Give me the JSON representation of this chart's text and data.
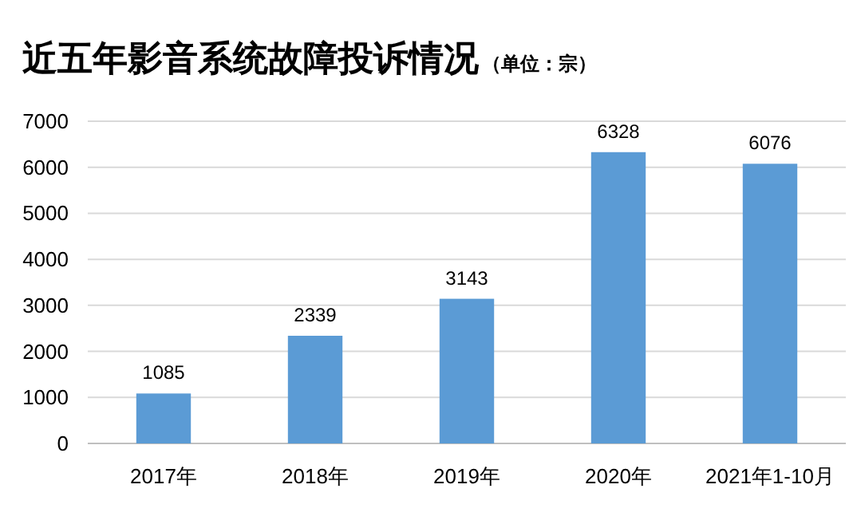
{
  "chart_data": {
    "type": "bar",
    "title": "近五年影音系统故障投诉情况",
    "subtitle": "（单位：宗）",
    "categories": [
      "2017年",
      "2018年",
      "2019年",
      "2020年",
      "2021年1-10月"
    ],
    "values": [
      1085,
      2339,
      3143,
      6328,
      6076
    ],
    "color": "#5b9bd5",
    "ylim": [
      0,
      7000
    ],
    "yticks": [
      0,
      1000,
      2000,
      3000,
      4000,
      5000,
      6000,
      7000
    ],
    "grid": "y",
    "data_labels": true
  }
}
